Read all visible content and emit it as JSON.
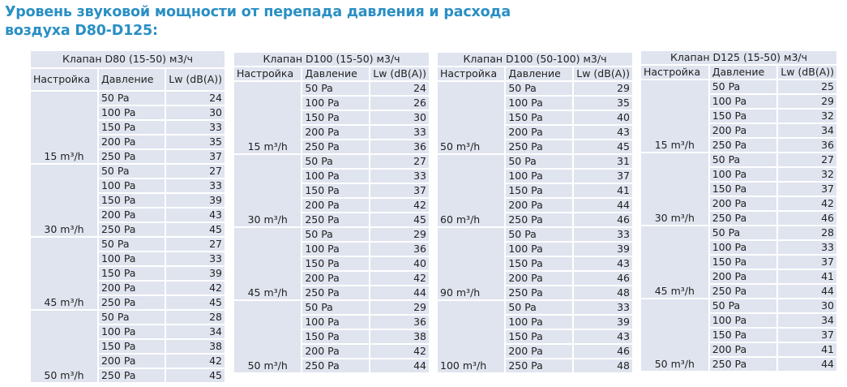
{
  "title_line1": "Уровень звуковой мощности от перепада давления и расхода",
  "title_line2": "воздуха D80-D125:",
  "columns": {
    "setting": "Настройка",
    "pressure": "Давление",
    "lw": "Lw (dB(A))"
  },
  "pressures": [
    "50 Pa",
    "100 Pa",
    "150 Pa",
    "200 Pa",
    "250 Pa"
  ],
  "tables": [
    {
      "caption": "Клапан D80 (15-50) м3/ч",
      "groups": [
        {
          "setting": "15 m³/h",
          "values": [
            24,
            30,
            33,
            35,
            37
          ]
        },
        {
          "setting": "30 m³/h",
          "values": [
            27,
            33,
            39,
            43,
            45
          ]
        },
        {
          "setting": "45 m³/h",
          "values": [
            27,
            33,
            39,
            42,
            45
          ]
        },
        {
          "setting": "50 m³/h",
          "values": [
            28,
            34,
            38,
            42,
            45
          ]
        }
      ]
    },
    {
      "caption": "Клапан D100 (15-50) м3/ч",
      "groups": [
        {
          "setting": "15 m³/h",
          "values": [
            24,
            26,
            30,
            33,
            36
          ]
        },
        {
          "setting": "30 m³/h",
          "values": [
            27,
            33,
            37,
            42,
            45
          ]
        },
        {
          "setting": "45 m³/h",
          "values": [
            29,
            36,
            40,
            42,
            44
          ]
        },
        {
          "setting": "50 m³/h",
          "values": [
            29,
            36,
            38,
            42,
            44
          ]
        }
      ]
    },
    {
      "caption": "Клапан D100 (50-100) м3/ч",
      "groups": [
        {
          "setting": "50 m³/h",
          "values": [
            29,
            35,
            40,
            43,
            45
          ]
        },
        {
          "setting": "60 m³/h",
          "values": [
            31,
            37,
            41,
            44,
            46
          ]
        },
        {
          "setting": "90 m³/h",
          "values": [
            33,
            39,
            43,
            46,
            48
          ]
        },
        {
          "setting": "100 m³/h",
          "values": [
            33,
            39,
            43,
            46,
            48
          ]
        }
      ]
    },
    {
      "caption": "Клапан D125 (15-50) м3/ч",
      "groups": [
        {
          "setting": "15 m³/h",
          "values": [
            25,
            29,
            32,
            34,
            36
          ]
        },
        {
          "setting": "30 m³/h",
          "values": [
            27,
            32,
            37,
            42,
            46
          ]
        },
        {
          "setting": "45 m³/h",
          "values": [
            28,
            33,
            37,
            41,
            44
          ]
        },
        {
          "setting": "50 m³/h",
          "values": [
            30,
            34,
            37,
            41,
            44
          ]
        }
      ]
    }
  ]
}
